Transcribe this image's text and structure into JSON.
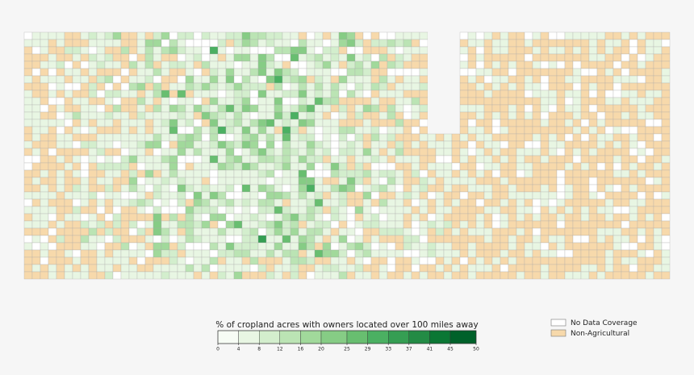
{
  "colorbar": {
    "title": "% of cropland acres with owners located over 100 miles away",
    "range": [
      0,
      50
    ],
    "ticks": [
      0,
      4,
      8,
      12,
      16,
      20,
      25,
      29,
      33,
      37,
      41,
      45,
      50
    ],
    "colors": [
      "#f7fcf5",
      "#e8f6e3",
      "#d3eecd",
      "#bbe4b4",
      "#a1d99b",
      "#86cc85",
      "#68be70",
      "#4bb062",
      "#359e53",
      "#238b45",
      "#0b7734",
      "#00612a"
    ]
  },
  "legend": [
    {
      "label": "No Data Coverage",
      "color": "#ffffff"
    },
    {
      "label": "Non-Agricultural",
      "color": "#f7d9ab"
    }
  ]
}
